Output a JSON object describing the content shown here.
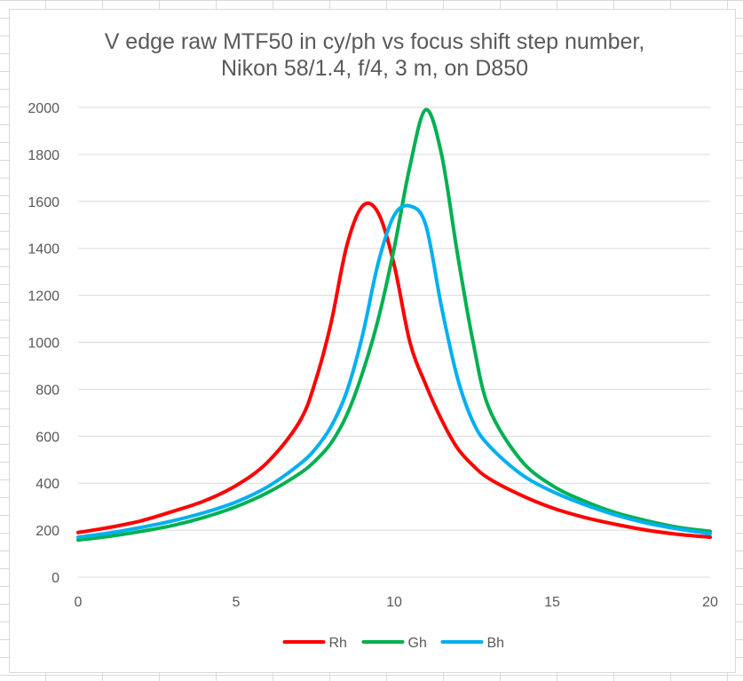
{
  "chart_data": {
    "type": "line",
    "title": "V edge raw MTF50 in cy/ph vs focus shift step number,",
    "subtitle": "Nikon 58/1.4, f/4, 3 m, on D850",
    "xlabel": "",
    "ylabel": "",
    "xlim": [
      0,
      20
    ],
    "ylim": [
      0,
      2000
    ],
    "x_ticks": [
      "0",
      "5",
      "10",
      "15",
      "20"
    ],
    "y_ticks": [
      "0",
      "200",
      "400",
      "600",
      "800",
      "1000",
      "1200",
      "1400",
      "1600",
      "1800",
      "2000"
    ],
    "grid": "horizontal",
    "legend_position": "bottom",
    "x": [
      0,
      1,
      2,
      3,
      4,
      5,
      6,
      7,
      7.5,
      8,
      8.5,
      9,
      9.5,
      10,
      10.5,
      11,
      11.5,
      12,
      12.5,
      13,
      14,
      15,
      16,
      17,
      18,
      19,
      20
    ],
    "series": [
      {
        "name": "Rh",
        "color": "#ff0000",
        "values": [
          190,
          212,
          240,
          280,
          325,
          390,
          490,
          660,
          830,
          1080,
          1410,
          1580,
          1550,
          1330,
          1000,
          820,
          670,
          550,
          475,
          420,
          350,
          295,
          255,
          225,
          200,
          182,
          170
        ]
      },
      {
        "name": "Gh",
        "color": "#00b050",
        "values": [
          158,
          174,
          195,
          220,
          255,
          300,
          360,
          440,
          495,
          570,
          690,
          870,
          1100,
          1400,
          1750,
          1990,
          1800,
          1380,
          1000,
          720,
          500,
          390,
          325,
          275,
          240,
          212,
          195
        ]
      },
      {
        "name": "Bh",
        "color": "#00b0f0",
        "values": [
          170,
          188,
          212,
          240,
          275,
          320,
          385,
          480,
          545,
          640,
          790,
          1030,
          1340,
          1540,
          1580,
          1500,
          1150,
          850,
          660,
          560,
          440,
          365,
          310,
          265,
          230,
          205,
          185
        ]
      }
    ]
  }
}
